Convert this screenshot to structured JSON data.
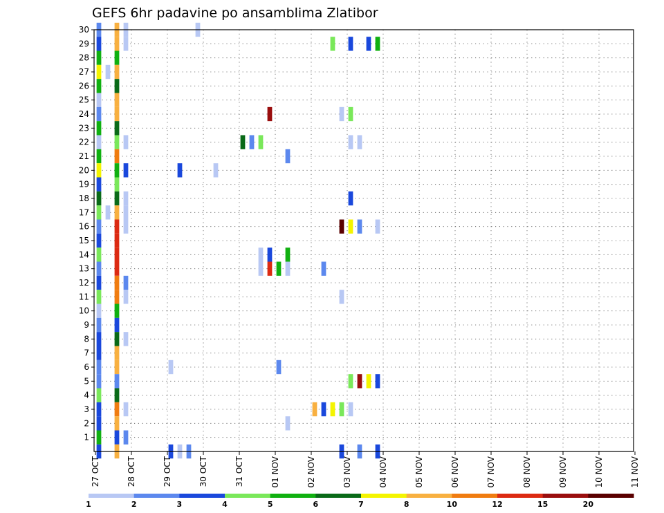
{
  "chart_data": {
    "type": "heatmap",
    "title": "GEFS 6hr padavine po ansamblima Zlatibor",
    "xlabel": "",
    "ylabel": "",
    "y_tick_labels": [
      "1",
      "2",
      "3",
      "4",
      "5",
      "6",
      "7",
      "8",
      "9",
      "10",
      "11",
      "12",
      "13",
      "14",
      "15",
      "16",
      "17",
      "18",
      "19",
      "20",
      "21",
      "22",
      "23",
      "24",
      "25",
      "26",
      "27",
      "28",
      "29",
      "30"
    ],
    "ylim": [
      0,
      30
    ],
    "x_tick_labels": [
      "27 OCT",
      "28 OCT",
      "29 OCT",
      "30 OCT",
      "31 OCT",
      "01 NOV",
      "02 NOV",
      "03 NOV",
      "04 NOV",
      "05 NOV",
      "06 NOV",
      "07 NOV",
      "08 NOV",
      "09 NOV",
      "10 NOV",
      "11 NOV"
    ],
    "steps_per_day": 4,
    "total_steps": 60,
    "grid": true,
    "colorbar": {
      "levels": [
        "1",
        "2",
        "3",
        "4",
        "5",
        "6",
        "7",
        "8",
        "10",
        "12",
        "15",
        "20"
      ],
      "colors": [
        "#b8c8f4",
        "#5c88ee",
        "#1a48dc",
        "#7ae85a",
        "#10b010",
        "#0a6a18",
        "#f4f400",
        "#f8b040",
        "#f07c10",
        "#dc2a12",
        "#9a0e0e",
        "#5a0000"
      ]
    },
    "cells": [
      [
        30,
        0,
        1
      ],
      [
        30,
        2,
        7
      ],
      [
        30,
        3,
        0
      ],
      [
        30,
        11,
        0
      ],
      [
        29,
        0,
        2
      ],
      [
        29,
        2,
        7
      ],
      [
        29,
        3,
        0
      ],
      [
        29,
        26,
        3
      ],
      [
        29,
        28,
        2
      ],
      [
        29,
        30,
        2
      ],
      [
        29,
        31,
        4
      ],
      [
        28,
        0,
        4
      ],
      [
        28,
        2,
        4
      ],
      [
        27,
        0,
        6
      ],
      [
        27,
        1,
        0
      ],
      [
        27,
        2,
        7
      ],
      [
        26,
        0,
        4
      ],
      [
        26,
        2,
        5
      ],
      [
        25,
        0,
        0
      ],
      [
        25,
        2,
        7
      ],
      [
        24,
        0,
        1
      ],
      [
        24,
        2,
        7
      ],
      [
        24,
        19,
        10
      ],
      [
        24,
        27,
        0
      ],
      [
        24,
        28,
        3
      ],
      [
        23,
        0,
        4
      ],
      [
        23,
        2,
        5
      ],
      [
        22,
        0,
        0
      ],
      [
        22,
        2,
        3
      ],
      [
        22,
        3,
        0
      ],
      [
        22,
        16,
        5
      ],
      [
        22,
        17,
        1
      ],
      [
        22,
        18,
        3
      ],
      [
        22,
        28,
        0
      ],
      [
        22,
        29,
        0
      ],
      [
        21,
        0,
        4
      ],
      [
        21,
        2,
        8
      ],
      [
        21,
        21,
        1
      ],
      [
        20,
        0,
        6
      ],
      [
        20,
        2,
        4
      ],
      [
        20,
        3,
        2
      ],
      [
        20,
        9,
        2
      ],
      [
        20,
        13,
        0
      ],
      [
        19,
        0,
        2
      ],
      [
        19,
        2,
        3
      ],
      [
        18,
        0,
        5
      ],
      [
        18,
        2,
        5
      ],
      [
        18,
        3,
        0
      ],
      [
        18,
        28,
        2
      ],
      [
        17,
        0,
        3
      ],
      [
        17,
        1,
        0
      ],
      [
        17,
        2,
        7
      ],
      [
        17,
        3,
        0
      ],
      [
        16,
        0,
        1
      ],
      [
        16,
        2,
        9
      ],
      [
        16,
        3,
        0
      ],
      [
        16,
        27,
        11
      ],
      [
        16,
        28,
        6
      ],
      [
        16,
        29,
        1
      ],
      [
        16,
        31,
        0
      ],
      [
        15,
        0,
        2
      ],
      [
        15,
        2,
        9
      ],
      [
        14,
        0,
        3
      ],
      [
        14,
        2,
        9
      ],
      [
        14,
        18,
        0
      ],
      [
        14,
        19,
        2
      ],
      [
        14,
        21,
        4
      ],
      [
        13,
        0,
        1
      ],
      [
        13,
        2,
        9
      ],
      [
        13,
        18,
        0
      ],
      [
        13,
        19,
        9
      ],
      [
        13,
        20,
        4
      ],
      [
        13,
        21,
        0
      ],
      [
        13,
        25,
        1
      ],
      [
        12,
        0,
        2
      ],
      [
        12,
        2,
        8
      ],
      [
        12,
        3,
        1
      ],
      [
        11,
        0,
        3
      ],
      [
        11,
        2,
        8
      ],
      [
        11,
        3,
        0
      ],
      [
        11,
        27,
        0
      ],
      [
        10,
        0,
        0
      ],
      [
        10,
        2,
        4
      ],
      [
        9,
        0,
        1
      ],
      [
        9,
        2,
        2
      ],
      [
        8,
        0,
        2
      ],
      [
        8,
        2,
        5
      ],
      [
        8,
        3,
        0
      ],
      [
        7,
        0,
        2
      ],
      [
        7,
        2,
        7
      ],
      [
        6,
        0,
        1
      ],
      [
        6,
        2,
        7
      ],
      [
        6,
        8,
        0
      ],
      [
        6,
        20,
        1
      ],
      [
        5,
        0,
        1
      ],
      [
        5,
        2,
        1
      ],
      [
        5,
        28,
        3
      ],
      [
        5,
        29,
        10
      ],
      [
        5,
        30,
        6
      ],
      [
        5,
        31,
        2
      ],
      [
        4,
        0,
        3
      ],
      [
        4,
        2,
        5
      ],
      [
        3,
        0,
        2
      ],
      [
        3,
        2,
        8
      ],
      [
        3,
        3,
        0
      ],
      [
        3,
        24,
        7
      ],
      [
        3,
        25,
        2
      ],
      [
        3,
        26,
        6
      ],
      [
        3,
        27,
        3
      ],
      [
        3,
        28,
        0
      ],
      [
        2,
        0,
        2
      ],
      [
        2,
        2,
        7
      ],
      [
        2,
        21,
        0
      ],
      [
        1,
        0,
        4
      ],
      [
        1,
        2,
        2
      ],
      [
        1,
        3,
        1
      ],
      [
        0,
        0,
        2
      ],
      [
        0,
        2,
        7
      ],
      [
        0,
        8,
        2
      ],
      [
        0,
        9,
        0
      ],
      [
        0,
        10,
        1
      ],
      [
        0,
        27,
        2
      ],
      [
        0,
        29,
        1
      ],
      [
        0,
        31,
        2
      ]
    ]
  }
}
